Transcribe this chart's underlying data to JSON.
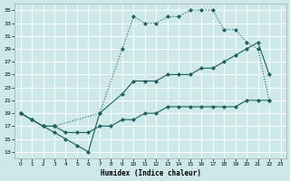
{
  "bg_color": "#cde8e8",
  "grid_color": "#ffffff",
  "line_color": "#1a6060",
  "xlabel": "Humidex (Indice chaleur)",
  "xlim": [
    -0.5,
    23.5
  ],
  "ylim": [
    12,
    36
  ],
  "yticks": [
    13,
    15,
    17,
    19,
    21,
    23,
    25,
    27,
    29,
    31,
    33,
    35
  ],
  "xticks": [
    0,
    1,
    2,
    3,
    4,
    5,
    6,
    7,
    8,
    9,
    10,
    11,
    12,
    13,
    14,
    15,
    16,
    17,
    18,
    19,
    20,
    21,
    22,
    23
  ],
  "line1_x": [
    0,
    1,
    2,
    3,
    7,
    9,
    10,
    11,
    12,
    13,
    14,
    15,
    16,
    17,
    18,
    19,
    20,
    21,
    22
  ],
  "line1_y": [
    19,
    18,
    17,
    17,
    19,
    29,
    34,
    33,
    33,
    34,
    34,
    35,
    35,
    35,
    32,
    32,
    30,
    29,
    21
  ],
  "line2_x": [
    0,
    1,
    2,
    3,
    4,
    5,
    6,
    7,
    8,
    9,
    10,
    11,
    12,
    13,
    14,
    15,
    16,
    17,
    18,
    19,
    20,
    21,
    22
  ],
  "line2_y": [
    19,
    18,
    17,
    17,
    16,
    16,
    16,
    17,
    17,
    18,
    18,
    19,
    19,
    20,
    20,
    20,
    20,
    20,
    20,
    20,
    21,
    21,
    21
  ],
  "line3_x": [
    0,
    2,
    3,
    4,
    5,
    6,
    7,
    9,
    10,
    11,
    12,
    13,
    14,
    15,
    16,
    17,
    18,
    19,
    20,
    21,
    22
  ],
  "line3_y": [
    19,
    17,
    16,
    15,
    14,
    13,
    19,
    22,
    24,
    24,
    24,
    25,
    25,
    25,
    26,
    26,
    27,
    28,
    29,
    30,
    25
  ]
}
